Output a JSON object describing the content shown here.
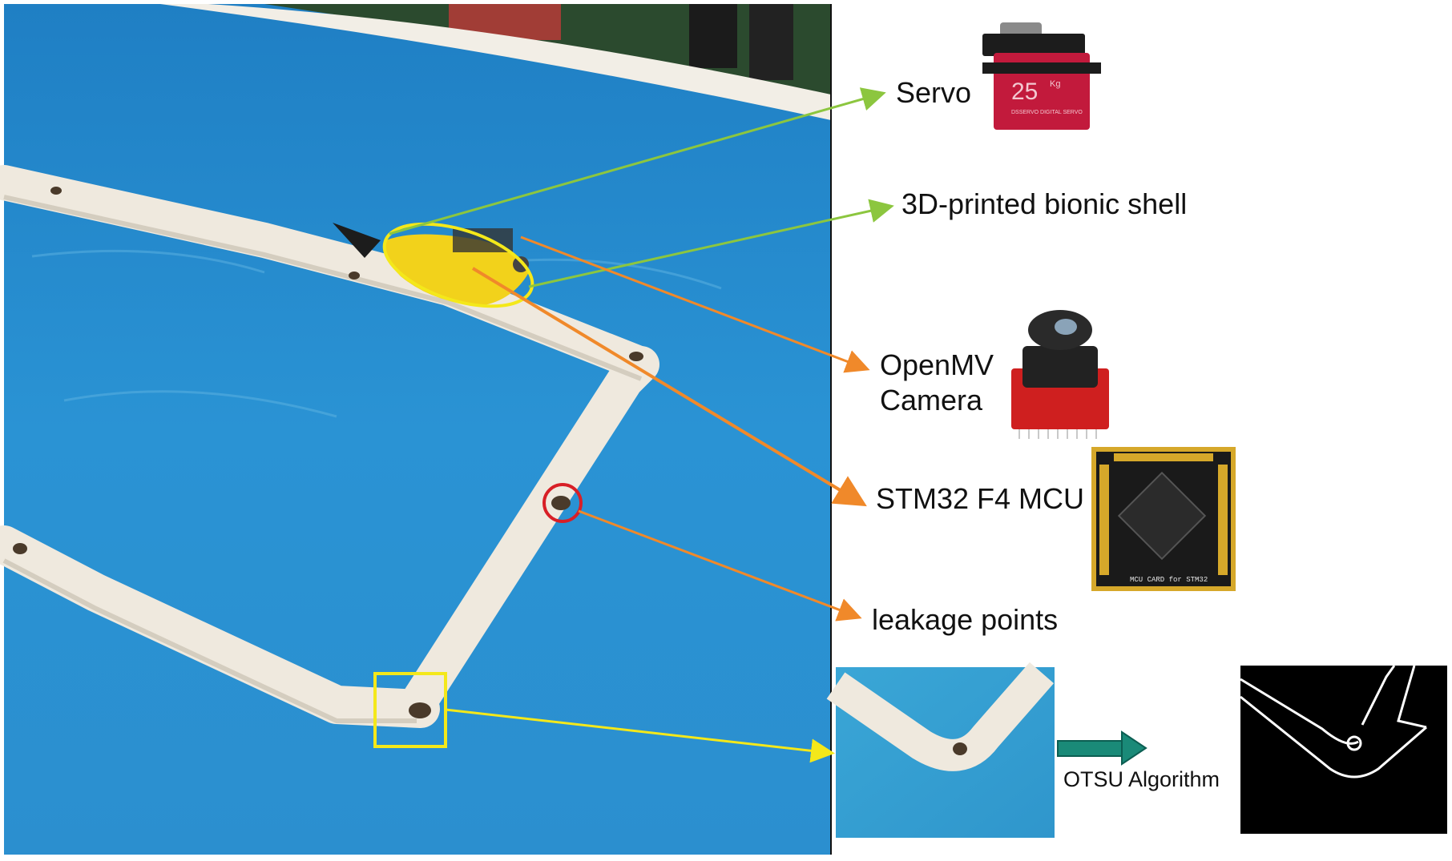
{
  "labels": {
    "servo": "Servo",
    "shell": "3D-printed bionic shell",
    "camera": "OpenMV Camera",
    "mcu": "STM32 F4 MCU",
    "leakage": "leakage points",
    "algorithm": "OTSU Algorithm"
  },
  "servo_text": {
    "big": "25",
    "unit": "Kg",
    "sub": "DSSERVO DIGITAL SERVO"
  },
  "board_text": "MCU CARD for STM32",
  "colors": {
    "pool_water": "#2a8fd0",
    "pipe": "#efe9de",
    "fish_body": "#f2d21b",
    "highlight_yellow": "#f4e81a",
    "callout_green": "#8cc63f",
    "callout_orange": "#f0892a",
    "leak_circle": "#d81f26",
    "otsu_arrow": "#1a8a78",
    "servo_red": "#c21a3c",
    "camera_board_red": "#cf1f1f",
    "mcu_board_black": "#1a1a1a",
    "mcu_board_gold": "#d6a82a"
  },
  "icons": [
    "servo-photo",
    "openmv-camera-photo",
    "stm32-board-photo"
  ]
}
